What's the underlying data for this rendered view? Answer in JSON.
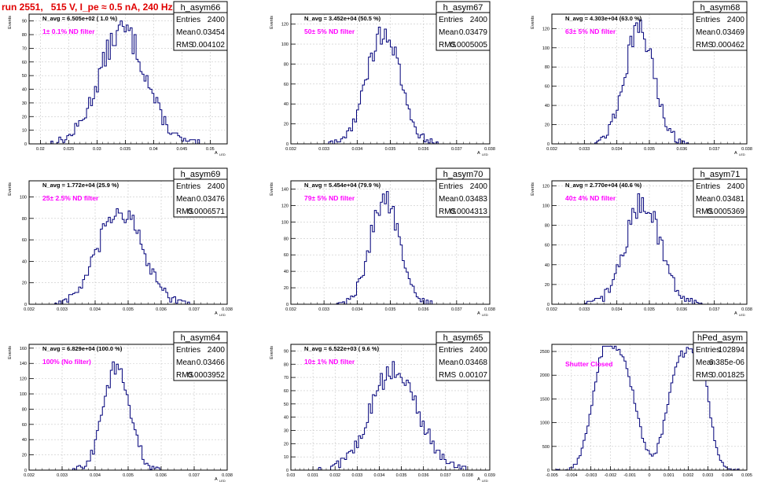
{
  "page": {
    "title": "run 2551,   515 V, I_pe ≈ 0.5 nA, 240 Hz"
  },
  "chart_data": [
    {
      "type": "histogram",
      "name": "h_asym66",
      "stats": {
        "entries": "2400",
        "mean": "0.03454",
        "rms": "0.004102"
      },
      "n_avg": "N_avg = 6.505e+02 ( 1.0 %)",
      "annotation": "1± 0.1% ND filter",
      "ylabel": "Events",
      "xlabel": "A_LED",
      "xlim": [
        0.018,
        0.053
      ],
      "xticks": [
        "0.02",
        "0.025",
        "0.03",
        "0.035",
        "0.04",
        "0.045",
        "0.05"
      ],
      "ylim": [
        0,
        95
      ],
      "yticks": [
        "0",
        "10",
        "20",
        "30",
        "40",
        "50",
        "60",
        "70",
        "80",
        "90"
      ],
      "dist": {
        "type": "gauss",
        "mu": 0.03454,
        "sigma": 0.004102,
        "peak": 83,
        "noise": 10
      },
      "bins": 100
    },
    {
      "type": "histogram",
      "name": "h_asym67",
      "stats": {
        "entries": "2400",
        "mean": "0.03479",
        "rms": "0.0005005"
      },
      "n_avg": "N_avg = 3.452e+04 (50.5 %)",
      "annotation": "50± 5% ND filter",
      "ylabel": "Events",
      "xlabel": "A_LED",
      "xlim": [
        0.032,
        0.038
      ],
      "xticks": [
        "0.032",
        "0.033",
        "0.034",
        "0.035",
        "0.036",
        "0.037",
        "0.038"
      ],
      "ylim": [
        0,
        130
      ],
      "yticks": [
        "0",
        "20",
        "40",
        "60",
        "80",
        "100",
        "120"
      ],
      "dist": {
        "type": "gauss",
        "mu": 0.03479,
        "sigma": 0.0005005,
        "peak": 112,
        "noise": 12
      },
      "bins": 100
    },
    {
      "type": "histogram",
      "name": "h_asym68",
      "stats": {
        "entries": "2400",
        "mean": "0.03469",
        "rms": "0.000462"
      },
      "n_avg": "N_avg = 4.303e+04 (63.0 %)",
      "annotation": "63± 5% ND filter",
      "ylabel": "Events",
      "xlabel": "A_LED",
      "xlim": [
        0.032,
        0.038
      ],
      "xticks": [
        "0.032",
        "0.033",
        "0.034",
        "0.035",
        "0.036",
        "0.037",
        "0.038"
      ],
      "ylim": [
        0,
        135
      ],
      "yticks": [
        "0",
        "20",
        "40",
        "60",
        "80",
        "100",
        "120"
      ],
      "dist": {
        "type": "gauss",
        "mu": 0.03469,
        "sigma": 0.000462,
        "peak": 118,
        "noise": 13
      },
      "bins": 100
    },
    {
      "type": "histogram",
      "name": "h_asym69",
      "stats": {
        "entries": "2400",
        "mean": "0.03476",
        "rms": "0.0006571"
      },
      "n_avg": "N_avg = 1.772e+04 (25.9 %)",
      "annotation": "25± 2.5% ND filter",
      "ylabel": "Events",
      "xlabel": "A_LED",
      "xlim": [
        0.032,
        0.038
      ],
      "xticks": [
        "0.032",
        "0.033",
        "0.034",
        "0.035",
        "0.036",
        "0.037",
        "0.038"
      ],
      "ylim": [
        0,
        115
      ],
      "yticks": [
        "0",
        "20",
        "40",
        "60",
        "80",
        "100"
      ],
      "dist": {
        "type": "gauss",
        "mu": 0.03476,
        "sigma": 0.0006571,
        "peak": 88,
        "noise": 11
      },
      "bins": 100
    },
    {
      "type": "histogram",
      "name": "h_asym70",
      "stats": {
        "entries": "2400",
        "mean": "0.03483",
        "rms": "0.0004313"
      },
      "n_avg": "N_avg = 5.454e+04 (79.9 %)",
      "annotation": "79± 5% ND filter",
      "ylabel": "Events",
      "xlabel": "A_LED",
      "xlim": [
        0.032,
        0.038
      ],
      "xticks": [
        "0.032",
        "0.033",
        "0.034",
        "0.035",
        "0.036",
        "0.037",
        "0.038"
      ],
      "ylim": [
        0,
        150
      ],
      "yticks": [
        "0",
        "20",
        "40",
        "60",
        "80",
        "100",
        "120",
        "140"
      ],
      "dist": {
        "type": "gauss",
        "mu": 0.03483,
        "sigma": 0.0004313,
        "peak": 130,
        "noise": 14
      },
      "bins": 100
    },
    {
      "type": "histogram",
      "name": "h_asym71",
      "stats": {
        "entries": "2400",
        "mean": "0.03481",
        "rms": "0.0005369"
      },
      "n_avg": "N_avg = 2.770e+04 (40.6 %)",
      "annotation": "40± 4% ND filter",
      "ylabel": "Events",
      "xlabel": "A_LED",
      "xlim": [
        0.032,
        0.038
      ],
      "xticks": [
        "0.032",
        "0.033",
        "0.034",
        "0.035",
        "0.036",
        "0.037",
        "0.038"
      ],
      "ylim": [
        0,
        125
      ],
      "yticks": [
        "0",
        "20",
        "40",
        "60",
        "80",
        "100",
        "120"
      ],
      "dist": {
        "type": "gauss",
        "mu": 0.03481,
        "sigma": 0.0005369,
        "peak": 104,
        "noise": 13
      },
      "bins": 100
    },
    {
      "type": "histogram",
      "name": "h_asym64",
      "stats": {
        "entries": "2400",
        "mean": "0.03466",
        "rms": "0.0003952"
      },
      "n_avg": "N_avg = 6.829e+04 (100.0 %)",
      "annotation": "100% (No filter)",
      "ylabel": "Events",
      "xlabel": "A_LED",
      "xlim": [
        0.032,
        0.038
      ],
      "xticks": [
        "0.032",
        "0.033",
        "0.034",
        "0.035",
        "0.036",
        "0.037",
        "0.038"
      ],
      "ylim": [
        0,
        165
      ],
      "yticks": [
        "0",
        "20",
        "40",
        "60",
        "80",
        "100",
        "120",
        "140",
        "160"
      ],
      "dist": {
        "type": "gauss",
        "mu": 0.03466,
        "sigma": 0.0003952,
        "peak": 138,
        "noise": 14
      },
      "bins": 100
    },
    {
      "type": "histogram",
      "name": "h_asym65",
      "stats": {
        "entries": "2400",
        "mean": "0.03468",
        "rms": "0.00107"
      },
      "n_avg": "N_avg = 6.522e+03 ( 9.6 %)",
      "annotation": "10± 1% ND filter",
      "ylabel": "Events",
      "xlabel": "A_LED",
      "xlim": [
        0.03,
        0.039
      ],
      "xticks": [
        "0.03",
        "0.031",
        "0.032",
        "0.033",
        "0.034",
        "0.035",
        "0.036",
        "0.037",
        "0.038",
        "0.039"
      ],
      "ylim": [
        0,
        95
      ],
      "yticks": [
        "0",
        "10",
        "20",
        "30",
        "40",
        "50",
        "60",
        "70",
        "80",
        "90"
      ],
      "dist": {
        "type": "gauss",
        "mu": 0.03468,
        "sigma": 0.00107,
        "peak": 75,
        "noise": 10
      },
      "bins": 100
    },
    {
      "type": "histogram",
      "name": "hPed_asym",
      "stats": {
        "entries": "102894",
        "mean": "6.385e-06",
        "rms": "0.001825"
      },
      "n_avg": "",
      "annotation": "Shutter Closed",
      "ylabel": "",
      "xlabel": "",
      "xlim": [
        -0.005,
        0.005
      ],
      "xticks": [
        "-0.005",
        "-0.004",
        "-0.003",
        "-0.002",
        "-0.001",
        "0",
        "0.001",
        "0.002",
        "0.003",
        "0.004",
        "0.005"
      ],
      "ylim": [
        0,
        2650
      ],
      "yticks": [
        "0",
        "500",
        "1000",
        "1500",
        "2000",
        "2500"
      ],
      "dist": {
        "type": "ped",
        "peak": 2350,
        "noise": 110
      },
      "bins": 100
    }
  ],
  "colors": {
    "title": "#e00000",
    "annotation": "#ff00ff",
    "line": "#00007a",
    "grid": "#c8c8c8"
  }
}
